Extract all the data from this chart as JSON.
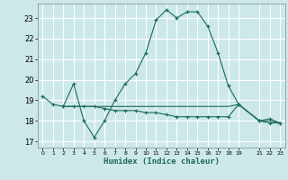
{
  "xlabel": "Humidex (Indice chaleur)",
  "background_color": "#cce8e8",
  "grid_color": "#ffffff",
  "line_color": "#1a6b5a",
  "xlim": [
    -0.5,
    23.5
  ],
  "ylim": [
    16.7,
    23.7
  ],
  "yticks": [
    17,
    18,
    19,
    20,
    21,
    22,
    23
  ],
  "xtick_positions": [
    0,
    1,
    2,
    3,
    4,
    5,
    6,
    7,
    8,
    9,
    10,
    11,
    12,
    13,
    14,
    15,
    16,
    17,
    18,
    19,
    21,
    22,
    23
  ],
  "xtick_labels": [
    "0",
    "1",
    "2",
    "3",
    "4",
    "5",
    "6",
    "7",
    "8",
    "9",
    "10",
    "11",
    "12",
    "13",
    "14",
    "15",
    "16",
    "17",
    "18",
    "19",
    "21",
    "22",
    "23"
  ],
  "series1_x": [
    0,
    1,
    2,
    3,
    4,
    5,
    6,
    7,
    8,
    9,
    10,
    11,
    12,
    13,
    14,
    15,
    16,
    17,
    18,
    19,
    21,
    22,
    23
  ],
  "series1_y": [
    19.2,
    18.8,
    18.7,
    19.8,
    18.0,
    17.2,
    18.0,
    19.0,
    19.8,
    20.3,
    21.3,
    22.9,
    23.4,
    23.0,
    23.3,
    23.3,
    22.6,
    21.3,
    19.7,
    18.8,
    18.0,
    18.1,
    17.9
  ],
  "series2_x": [
    2,
    3,
    4,
    5,
    6,
    7,
    8,
    9,
    10,
    11,
    12,
    13,
    14,
    15,
    16,
    17,
    18,
    19,
    21,
    22,
    23
  ],
  "series2_y": [
    18.7,
    18.7,
    18.7,
    18.7,
    18.6,
    18.5,
    18.5,
    18.5,
    18.4,
    18.4,
    18.3,
    18.2,
    18.2,
    18.2,
    18.2,
    18.2,
    18.2,
    18.8,
    18.0,
    17.9,
    17.9
  ],
  "series3_x": [
    2,
    3,
    4,
    5,
    6,
    7,
    8,
    9,
    10,
    11,
    12,
    13,
    14,
    15,
    16,
    17,
    18,
    19,
    21,
    22,
    23
  ],
  "series3_y": [
    18.7,
    18.7,
    18.7,
    18.7,
    18.7,
    18.7,
    18.7,
    18.7,
    18.7,
    18.7,
    18.7,
    18.7,
    18.7,
    18.7,
    18.7,
    18.7,
    18.7,
    18.8,
    18.0,
    18.0,
    17.9
  ]
}
